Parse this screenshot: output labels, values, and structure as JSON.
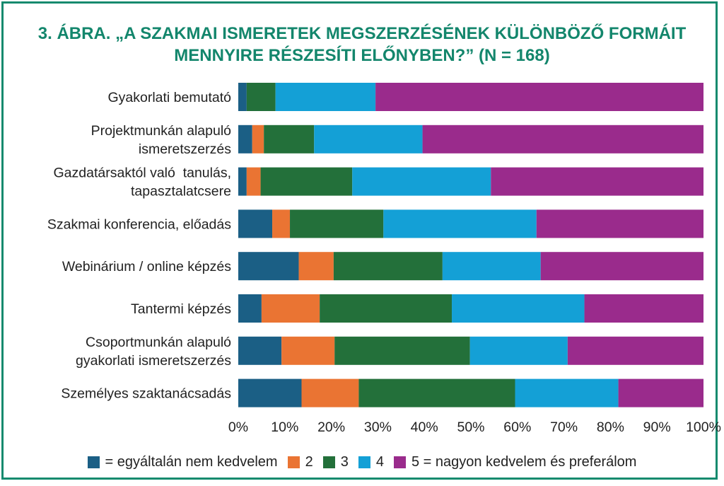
{
  "title": {
    "line1": "3. ÁBRA. „A SZAKMAI ISMERETEK MEGSZERZÉSÉNEK KÜLÖNBÖZŐ FORMÁIT",
    "line2": "MENNYIRE RÉSZESÍTI ELŐNYBEN?” (N = 168)"
  },
  "chart_data": {
    "type": "bar",
    "orientation": "horizontal",
    "stacked": "100%",
    "title": "3. ÁBRA. „A SZAKMAI ISMERETEK MEGSZERZÉSÉNEK KÜLÖNBÖZŐ FORMÁIT MENNYIRE RÉSZESÍTI ELŐNYBEN?” (N = 168)",
    "categories": [
      [
        "Gyakorlati bemutató"
      ],
      [
        "Projektmunkán alapuló",
        "ismeretszerzés"
      ],
      [
        "Gazdatársaktól való  tanulás,",
        "tapasztalatcsere"
      ],
      [
        "Szakmai konferencia, előadás"
      ],
      [
        "Webinárium / online képzés"
      ],
      [
        "Tantermi képzés"
      ],
      [
        "Csoportmunkán alapuló",
        "gyakorlati ismeretszerzés"
      ],
      [
        "Személyes szaktanácsadás"
      ]
    ],
    "series": [
      {
        "name": "= egyáltalán nem kedvelem",
        "color": "#1b5f85",
        "values": [
          1.8,
          3.0,
          1.8,
          7.3,
          13.0,
          5.0,
          9.3,
          13.6
        ]
      },
      {
        "name": "2",
        "color": "#ea7433",
        "values": [
          0.0,
          2.5,
          3.0,
          3.8,
          7.5,
          12.5,
          11.4,
          12.3
        ]
      },
      {
        "name": "3",
        "color": "#23703a",
        "values": [
          6.2,
          10.8,
          19.7,
          20.1,
          23.4,
          28.4,
          29.1,
          33.6
        ]
      },
      {
        "name": "4",
        "color": "#14a0d6",
        "values": [
          21.5,
          23.3,
          29.8,
          32.9,
          21.1,
          28.5,
          21.0,
          22.2
        ]
      },
      {
        "name": "5 = nagyon kedvelem és preferálom",
        "color": "#9a2b8c",
        "values": [
          70.5,
          60.4,
          45.7,
          35.9,
          35.0,
          25.6,
          29.2,
          18.3
        ]
      }
    ],
    "xlim": [
      0,
      100
    ],
    "xticks": [
      "0%",
      "10%",
      "20%",
      "30%",
      "40%",
      "50%",
      "60%",
      "70%",
      "80%",
      "90%",
      "100%"
    ],
    "grid": false,
    "legend_position": "bottom"
  }
}
